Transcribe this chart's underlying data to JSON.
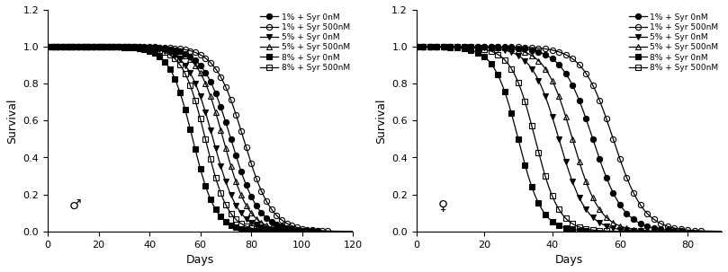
{
  "left_panel": {
    "gender_symbol": "♂",
    "xlabel": "Days",
    "ylabel": "Survival",
    "xlim": [
      0,
      120
    ],
    "ylim": [
      0,
      1.2
    ],
    "xticks": [
      0,
      20,
      40,
      60,
      80,
      100,
      120
    ],
    "yticks": [
      0.0,
      0.2,
      0.4,
      0.6,
      0.8,
      1.0,
      1.2
    ],
    "curves": [
      {
        "label": "1% + Syr 0nM",
        "midpoint": 72,
        "slope": 5.5,
        "marker": "o",
        "fillstyle": "full",
        "color": "black"
      },
      {
        "label": "1% + Syr 500nM",
        "midpoint": 77,
        "slope": 5.5,
        "marker": "o",
        "fillstyle": "none",
        "color": "black"
      },
      {
        "label": "5% + Syr 0nM",
        "midpoint": 65,
        "slope": 5.0,
        "marker": "v",
        "fillstyle": "full",
        "color": "black"
      },
      {
        "label": "5% + Syr 500nM",
        "midpoint": 69,
        "slope": 5.0,
        "marker": "^",
        "fillstyle": "none",
        "color": "black"
      },
      {
        "label": "8% + Syr 0nM",
        "midpoint": 57,
        "slope": 4.5,
        "marker": "s",
        "fillstyle": "full",
        "color": "black"
      },
      {
        "label": "8% + Syr 500nM",
        "midpoint": 62,
        "slope": 4.5,
        "marker": "s",
        "fillstyle": "none",
        "color": "black"
      }
    ]
  },
  "right_panel": {
    "gender_symbol": "♀",
    "xlabel": "Days",
    "ylabel": "Survival",
    "xlim": [
      0,
      90
    ],
    "ylim": [
      0,
      1.2
    ],
    "xticks": [
      0,
      20,
      40,
      60,
      80
    ],
    "yticks": [
      0.0,
      0.2,
      0.4,
      0.6,
      0.8,
      1.0,
      1.2
    ],
    "curves": [
      {
        "label": "1% + Syr 0nM",
        "midpoint": 52,
        "slope": 4.5,
        "marker": "o",
        "fillstyle": "full",
        "color": "black"
      },
      {
        "label": "1% + Syr 500nM",
        "midpoint": 58,
        "slope": 4.5,
        "marker": "o",
        "fillstyle": "none",
        "color": "black"
      },
      {
        "label": "5% + Syr 0nM",
        "midpoint": 42,
        "slope": 4.0,
        "marker": "v",
        "fillstyle": "full",
        "color": "black"
      },
      {
        "label": "5% + Syr 500nM",
        "midpoint": 46,
        "slope": 4.0,
        "marker": "^",
        "fillstyle": "none",
        "color": "black"
      },
      {
        "label": "8% + Syr 0nM",
        "midpoint": 30,
        "slope": 3.5,
        "marker": "s",
        "fillstyle": "full",
        "color": "black"
      },
      {
        "label": "8% + Syr 500nM",
        "midpoint": 35,
        "slope": 3.5,
        "marker": "s",
        "fillstyle": "none",
        "color": "black"
      }
    ]
  },
  "legend_labels": [
    "1% + Syr 0nM",
    "1% + Syr 500nM",
    "5% + Syr 0nM",
    "5% + Syr 500nM",
    "8% + Syr 0nM",
    "8% + Syr 500nM"
  ],
  "background_color": "#ffffff",
  "marker_size": 4.5,
  "marker_interval": 2,
  "linewidth": 0.9
}
